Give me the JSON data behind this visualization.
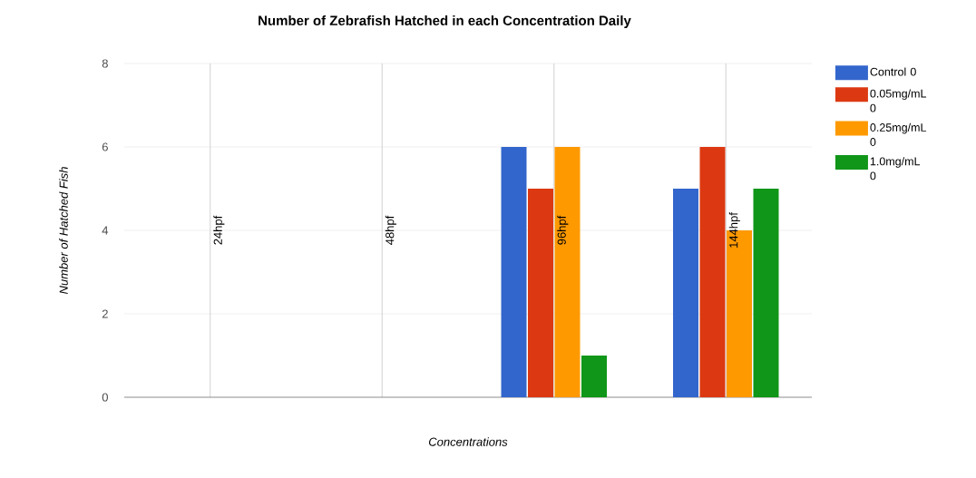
{
  "chart_data": {
    "type": "bar",
    "title": "Number of Zebrafish Hatched in each Concentration Daily",
    "xlabel": "Concentrations",
    "ylabel": "Number of Hatched Fish",
    "categories": [
      "24hpf",
      "48hpf",
      "96hpf",
      "144hpf"
    ],
    "series": [
      {
        "name": "Control 0",
        "color": "#3366cc",
        "values": [
          0,
          0,
          6,
          5
        ]
      },
      {
        "name": "0.05mg/mL 0",
        "color": "#dc3912",
        "values": [
          0,
          0,
          5,
          6
        ]
      },
      {
        "name": "0.25mg/mL 0",
        "color": "#ff9900",
        "values": [
          0,
          0,
          6,
          4
        ]
      },
      {
        "name": "1.0mg/mL 0",
        "color": "#109618",
        "values": [
          0,
          0,
          1,
          5
        ]
      }
    ],
    "ylim": [
      0,
      8
    ],
    "yticks": [
      0,
      2,
      4,
      6,
      8
    ],
    "grid": true,
    "legend": "right"
  }
}
